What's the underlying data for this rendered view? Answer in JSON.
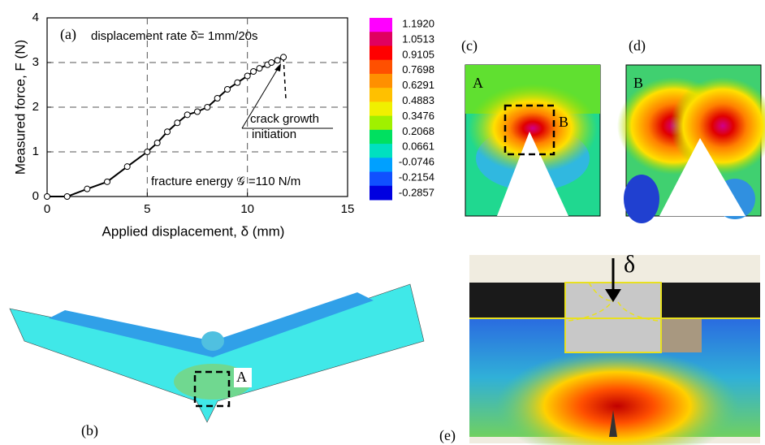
{
  "chart_data": {
    "type": "line",
    "panel_label": "(a)",
    "x_label": "Applied displacement, δ (mm)",
    "y_label": "Measured force, F (N)",
    "annotations": [
      "displacement rate δ̇= 1mm/20s",
      "crack growth",
      "initiation",
      "fracture energy 𝒢 =110 N/m"
    ],
    "x": [
      0,
      1,
      2,
      3,
      4,
      5,
      5.5,
      6,
      6.5,
      7,
      7.5,
      8,
      8.5,
      9,
      9.5,
      10,
      10.3,
      10.6,
      11,
      11.2,
      11.5,
      11.8
    ],
    "series": [
      {
        "color": "#000000",
        "values": [
          0,
          0,
          0.17,
          0.33,
          0.67,
          1.0,
          1.2,
          1.45,
          1.65,
          1.83,
          1.9,
          2.0,
          2.2,
          2.4,
          2.55,
          2.7,
          2.8,
          2.87,
          2.95,
          3.0,
          3.05,
          3.12
        ]
      }
    ],
    "xlim": [
      0,
      15
    ],
    "ylim": [
      0,
      4
    ],
    "xticks": [
      0,
      5,
      10,
      15
    ],
    "yticks": [
      0,
      1,
      2,
      3,
      4
    ],
    "grid": true
  },
  "colorbar": {
    "labels": [
      "1.1920",
      "1.0513",
      "0.9105",
      "0.7698",
      "0.6291",
      "0.4883",
      "0.3476",
      "0.2068",
      "0.0661",
      "-0.0746",
      "-0.2154",
      "-0.2857"
    ]
  },
  "panels": {
    "b": "(b)",
    "c": "(c)",
    "d": "(d)",
    "e": "(e)"
  },
  "markers": {
    "b_box": "A",
    "c_left": "A",
    "c_box": "B",
    "d_left": "B",
    "e_load": "δ"
  }
}
